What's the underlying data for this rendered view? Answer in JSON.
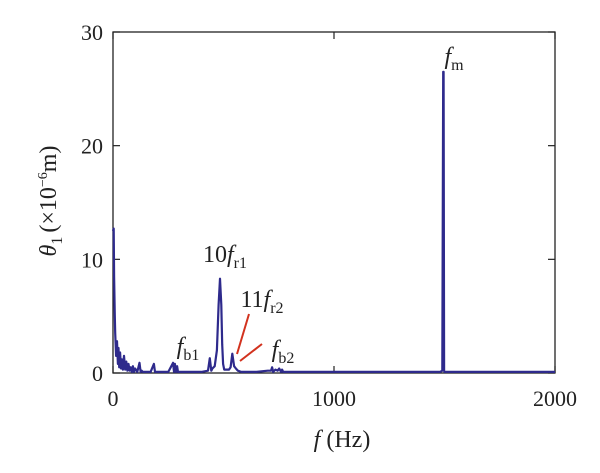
{
  "chart_data": {
    "type": "line",
    "xlabel_symbol": "f",
    "xlabel_unit": "(Hz)",
    "ylabel_symbol": "θ",
    "ylabel_sub": "1",
    "ylabel_pre": "(×10",
    "ylabel_exp": "−6",
    "ylabel_post": "m)",
    "xlim": [
      0,
      2000
    ],
    "ylim": [
      0,
      30
    ],
    "xticks": [
      0,
      1000,
      2000
    ],
    "xtick_labels": [
      "0",
      "1000",
      "2000"
    ],
    "yticks": [
      0,
      10,
      20,
      30
    ],
    "ytick_labels": [
      "0",
      "10",
      "20",
      "30"
    ],
    "grid": false,
    "line_color": "#2e2a8c",
    "annotation_line_color": "#d2321e",
    "series": [
      {
        "x": [
          0,
          3,
          5,
          8,
          10,
          14,
          18,
          22,
          25,
          28,
          32,
          36,
          40,
          45,
          50,
          55,
          60,
          65,
          70,
          75,
          80,
          85,
          90,
          95,
          100,
          110,
          120,
          125,
          130,
          135,
          150,
          170,
          185,
          190,
          195,
          210,
          250,
          272,
          276,
          280,
          285,
          290,
          294,
          300,
          330,
          360,
          400,
          430,
          438,
          445,
          450,
          460,
          470,
          478,
          484,
          490,
          494,
          498,
          503,
          508,
          515,
          525,
          532,
          540,
          548,
          556,
          565,
          580,
          620,
          650,
          700,
          715,
          720,
          725,
          735,
          745,
          752,
          760,
          765,
          770,
          780,
          800,
          850,
          900,
          950,
          1000,
          1100,
          1200,
          1300,
          1400,
          1450,
          1480,
          1490,
          1494,
          1496,
          1498,
          1500,
          1502,
          1504,
          1506,
          1510,
          1520,
          1600,
          1700,
          1800,
          1900,
          2000
        ],
        "y": [
          12.5,
          12.7,
          8.5,
          5.0,
          3.5,
          1.5,
          2.8,
          0.8,
          2.2,
          0.5,
          1.8,
          0.4,
          1.2,
          0.3,
          1.5,
          0.3,
          1.0,
          0.2,
          0.8,
          0.2,
          0.5,
          0.1,
          0.6,
          0.1,
          0.4,
          0.1,
          0.9,
          0.1,
          0.2,
          0.1,
          0.1,
          0.1,
          0.8,
          0.1,
          0.1,
          0.1,
          0.1,
          0.9,
          0.1,
          0.8,
          0.1,
          0.6,
          0.1,
          0.1,
          0.1,
          0.1,
          0.1,
          0.2,
          1.3,
          0.2,
          0.4,
          0.6,
          2.0,
          6.0,
          8.3,
          6.0,
          2.5,
          0.8,
          0.3,
          0.3,
          0.3,
          0.3,
          0.5,
          1.7,
          0.6,
          0.4,
          0.2,
          0.1,
          0.1,
          0.1,
          0.2,
          0.2,
          0.5,
          0.1,
          0.3,
          0.2,
          0.4,
          0.1,
          0.3,
          0.1,
          0.1,
          0.1,
          0.1,
          0.1,
          0.1,
          0.1,
          0.1,
          0.1,
          0.1,
          0.1,
          0.1,
          0.1,
          0.2,
          26.5,
          26.5,
          0.2,
          0.1,
          0.1,
          0.1,
          0.1,
          0.1,
          0.1,
          0.1,
          0.1,
          0.1,
          0.1,
          0.1
        ]
      }
    ],
    "annotations": [
      {
        "symbol": "f",
        "sub": "m",
        "coef": "",
        "at": [
          1500,
          26.5
        ]
      },
      {
        "symbol": "f",
        "sub": "r1",
        "coef": "10",
        "at": [
          484,
          8.3
        ]
      },
      {
        "symbol": "f",
        "sub": "r2",
        "coef": "11",
        "at": [
          540,
          1.7
        ]
      },
      {
        "symbol": "f",
        "sub": "b1",
        "coef": "",
        "at": [
          280,
          0.9
        ]
      },
      {
        "symbol": "f",
        "sub": "b2",
        "coef": "",
        "at": [
          560,
          0.2
        ]
      }
    ]
  }
}
